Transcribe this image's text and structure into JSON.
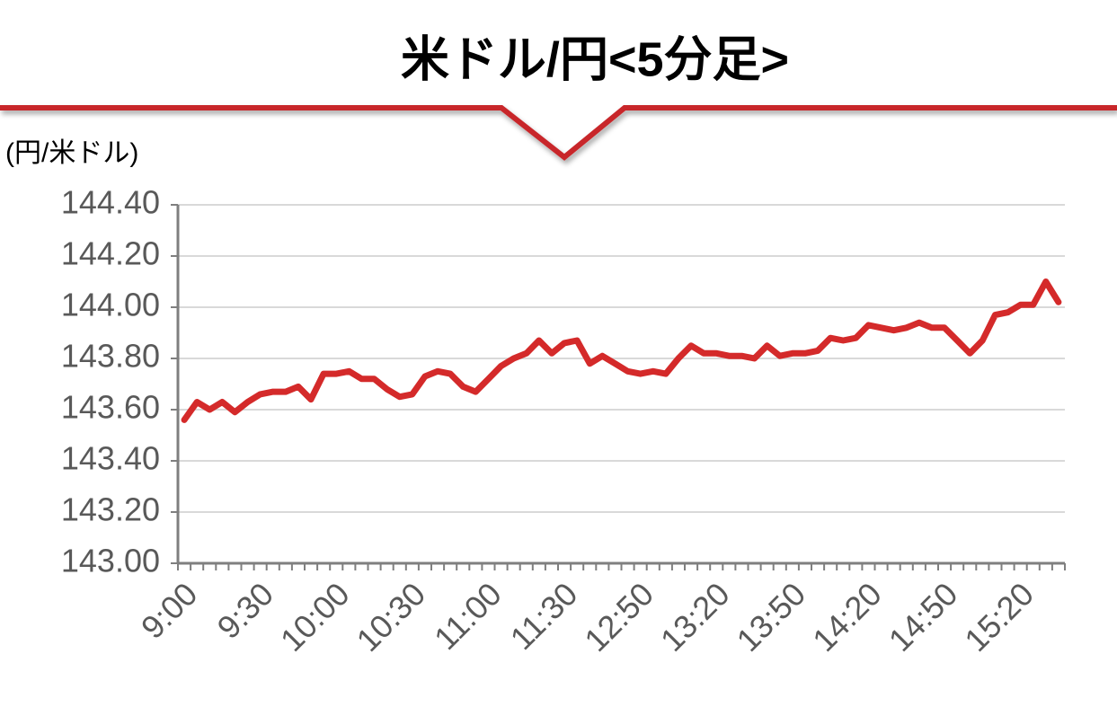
{
  "chart_data": {
    "type": "line",
    "title": "米ドル/円<5分足>",
    "y_label": "(円/米ドル)",
    "categories": [
      "9:00",
      null,
      null,
      null,
      null,
      null,
      "9:30",
      null,
      null,
      null,
      null,
      null,
      "10:00",
      null,
      null,
      null,
      null,
      null,
      "10:30",
      null,
      null,
      null,
      null,
      null,
      "11:00",
      null,
      null,
      null,
      null,
      null,
      "11:30",
      null,
      null,
      null,
      null,
      null,
      "12:50",
      null,
      null,
      null,
      null,
      null,
      "13:20",
      null,
      null,
      null,
      null,
      null,
      "13:50",
      null,
      null,
      null,
      null,
      null,
      "14:20",
      null,
      null,
      null,
      null,
      null,
      "14:50",
      null,
      null,
      null,
      null,
      null,
      "15:20",
      null,
      null,
      null
    ],
    "values": [
      143.56,
      143.63,
      143.6,
      143.63,
      143.59,
      143.63,
      143.66,
      143.67,
      143.67,
      143.69,
      143.64,
      143.74,
      143.74,
      143.75,
      143.72,
      143.72,
      143.68,
      143.65,
      143.66,
      143.73,
      143.75,
      143.74,
      143.69,
      143.67,
      143.72,
      143.77,
      143.8,
      143.82,
      143.87,
      143.82,
      143.86,
      143.87,
      143.78,
      143.81,
      143.78,
      143.75,
      143.74,
      143.75,
      143.74,
      143.8,
      143.85,
      143.82,
      143.82,
      143.81,
      143.81,
      143.8,
      143.85,
      143.81,
      143.82,
      143.82,
      143.83,
      143.88,
      143.87,
      143.88,
      143.93,
      143.92,
      143.91,
      143.92,
      143.94,
      143.92,
      143.92,
      143.87,
      143.82,
      143.87,
      143.97,
      143.98,
      144.01,
      144.01,
      144.1,
      144.02
    ],
    "color": "#d42a2a",
    "ylim": [
      143.0,
      144.4
    ],
    "yticks": [
      {
        "value": 143.0,
        "label": "143.00"
      },
      {
        "value": 143.2,
        "label": "143.20"
      },
      {
        "value": 143.4,
        "label": "143.40"
      },
      {
        "value": 143.6,
        "label": "143.60"
      },
      {
        "value": 143.8,
        "label": "143.80"
      },
      {
        "value": 144.0,
        "label": "144.00"
      },
      {
        "value": 144.2,
        "label": "144.20"
      },
      {
        "value": 144.4,
        "label": "144.40"
      }
    ],
    "grid": true
  }
}
